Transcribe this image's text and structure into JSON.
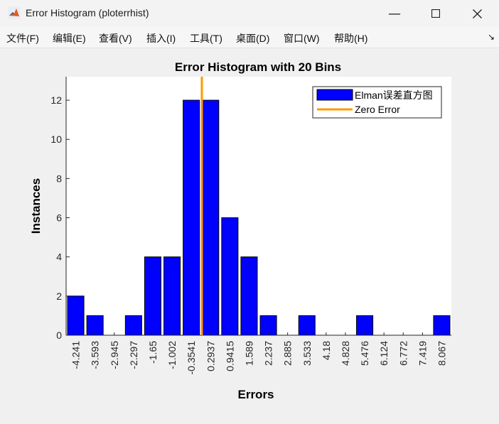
{
  "window": {
    "title": "Error Histogram (ploterrhist)"
  },
  "menu": [
    {
      "label": "文件(F)"
    },
    {
      "label": "编辑(E)"
    },
    {
      "label": "查看(V)"
    },
    {
      "label": "插入(I)"
    },
    {
      "label": "工具(T)"
    },
    {
      "label": "桌面(D)"
    },
    {
      "label": "窗口(W)"
    },
    {
      "label": "帮助(H)"
    }
  ],
  "colors": {
    "bar": "#0000ff",
    "zero_line": "#ff9900",
    "axes_bg": "#ffffff"
  },
  "chart_data": {
    "type": "bar",
    "title": "Error Histogram with 20 Bins",
    "xlabel": "Errors",
    "ylabel": "Instances",
    "categories": [
      "-4.241",
      "-3.593",
      "-2.945",
      "-2.297",
      "-1.65",
      "-1.002",
      "-0.3541",
      "0.2937",
      "0.9415",
      "1.589",
      "2.237",
      "2.885",
      "3.533",
      "4.18",
      "4.828",
      "5.476",
      "6.124",
      "6.772",
      "7.419",
      "8.067"
    ],
    "values": [
      2,
      1,
      0,
      1,
      4,
      4,
      12,
      12,
      6,
      4,
      1,
      0,
      1,
      0,
      0,
      1,
      0,
      0,
      0,
      1
    ],
    "ylim": [
      0,
      13.2
    ],
    "yticks": [
      "0",
      "2",
      "4",
      "6",
      "8",
      "10",
      "12"
    ],
    "zero_line_position": 0,
    "legend": [
      {
        "label": "Elman误差直方图",
        "kind": "bar"
      },
      {
        "label": "Zero Error",
        "kind": "line"
      }
    ],
    "legend_position": "top-right",
    "grid": false
  }
}
